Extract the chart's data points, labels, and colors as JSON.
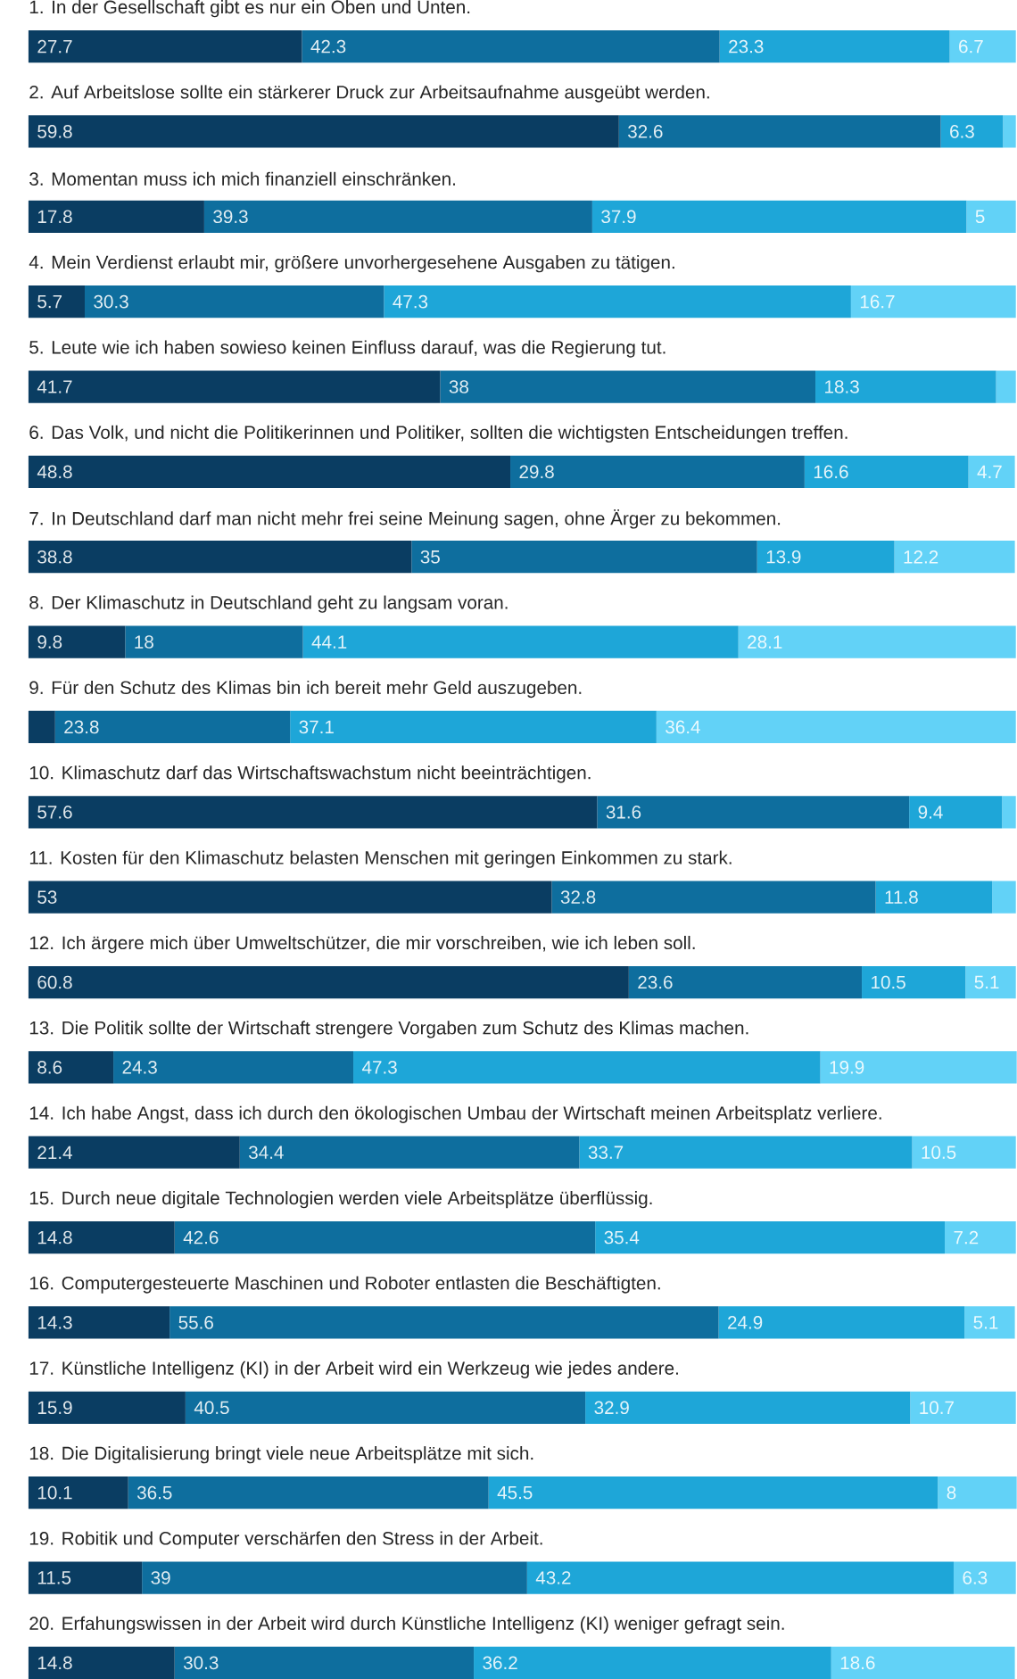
{
  "chart_data": {
    "type": "bar",
    "stacked": true,
    "orientation": "horizontal",
    "categories": [
      "1. In der Gesellschaft gibt es nur ein Oben und Unten.",
      "2. Auf Arbeitslose sollte ein stärkerer Druck zur Arbeitsaufnahme ausgeübt werden.",
      "3. Momentan muss ich mich finanziell einschränken.",
      "4. Mein Verdienst erlaubt mir, größere unvorhergesehene Ausgaben zu tätigen.",
      "5. Leute wie ich haben sowieso keinen Einfluss darauf, was die Regierung tut.",
      "6. Das Volk, und nicht die Politikerinnen und Politiker, sollten die wichtigsten Entscheidungen treffen.",
      "7. In Deutschland darf man nicht mehr frei seine Meinung sagen, ohne Ärger zu bekommen.",
      "8. Der Klimaschutz in Deutschland geht zu langsam voran.",
      "9. Für den Schutz des Klimas bin ich bereit mehr Geld auszugeben.",
      "10. Klimaschutz darf das Wirtschaftswachstum nicht beeinträchtigen.",
      "11. Kosten für den Klimaschutz belasten Menschen mit geringen Einkommen zu stark.",
      "12. Ich ärgere mich über Umweltschützer, die mir vorschreiben, wie ich leben soll.",
      "13. Die Politik sollte der Wirtschaft strengere Vorgaben zum Schutz des Klimas machen.",
      "14. Ich habe Angst, dass ich durch den ökologischen Umbau der Wirtschaft meinen Arbeitsplatz verliere.",
      "15. Durch neue digitale Technologien werden viele Arbeitsplätze überflüssig.",
      "16. Computergesteuerte Maschinen und Roboter entlasten die Beschäftigten.",
      "17. Künstliche Intelligenz (KI) in der Arbeit wird ein Werkzeug wie jedes andere.",
      "18. Die Digitalisierung bringt viele neue Arbeitsplätze mit sich.",
      "19. Robitik und Computer verschärfen den Stress in der Arbeit.",
      "20. Erfahungswissen in der Arbeit wird durch Künstliche Intelligenz (KI) weniger gefragt sein."
    ],
    "series": [
      {
        "color": "#0a3d62",
        "values": [
          27.7,
          59.8,
          17.8,
          5.7,
          41.7,
          48.8,
          38.8,
          9.8,
          2.7,
          57.6,
          53,
          60.8,
          8.6,
          21.4,
          14.8,
          14.3,
          15.9,
          10.1,
          11.5,
          14.8
        ],
        "value_labels": [
          "27.7",
          "59.8",
          "17.8",
          "5.7",
          "41.7",
          "48.8",
          "38.8",
          "9.8",
          null,
          "57.6",
          "53",
          "60.8",
          "8.6",
          "21.4",
          "14.8",
          "14.3",
          "15.9",
          "10.1",
          "11.5",
          "14.8"
        ]
      },
      {
        "color": "#0e6e9e",
        "values": [
          42.3,
          32.6,
          39.3,
          30.3,
          38,
          29.8,
          35,
          18,
          23.8,
          31.6,
          32.8,
          23.6,
          24.3,
          34.4,
          42.6,
          55.6,
          40.5,
          36.5,
          39,
          30.3
        ],
        "value_labels": [
          "42.3",
          "32.6",
          "39.3",
          "30.3",
          "38",
          "29.8",
          "35",
          "18",
          "23.8",
          "31.6",
          "32.8",
          "23.6",
          "24.3",
          "34.4",
          "42.6",
          "55.6",
          "40.5",
          "36.5",
          "39",
          "30.3"
        ]
      },
      {
        "color": "#1ea6d8",
        "values": [
          23.3,
          6.3,
          37.9,
          47.3,
          18.3,
          16.6,
          13.9,
          44.1,
          37.1,
          9.4,
          11.8,
          10.5,
          47.3,
          33.7,
          35.4,
          24.9,
          32.9,
          45.5,
          43.2,
          36.2
        ],
        "value_labels": [
          "23.3",
          "6.3",
          "37.9",
          "47.3",
          "18.3",
          "16.6",
          "13.9",
          "44.1",
          "37.1",
          "9.4",
          "11.8",
          "10.5",
          "47.3",
          "33.7",
          "35.4",
          "24.9",
          "32.9",
          "45.5",
          "43.2",
          "36.2"
        ]
      },
      {
        "color": "#62d2f7",
        "values": [
          6.7,
          1.3,
          5,
          16.7,
          2.0,
          4.7,
          12.2,
          28.1,
          36.4,
          1.4,
          2.4,
          5.1,
          19.9,
          10.5,
          7.2,
          5.1,
          10.7,
          8,
          6.3,
          18.6
        ],
        "value_labels": [
          "6.7",
          null,
          "5",
          "16.7",
          null,
          "4.7",
          "12.2",
          "28.1",
          "36.4",
          null,
          null,
          "5.1",
          "19.9",
          "10.5",
          "7.2",
          "5.1",
          "10.7",
          "8",
          "6.3",
          "18.6"
        ]
      }
    ]
  }
}
